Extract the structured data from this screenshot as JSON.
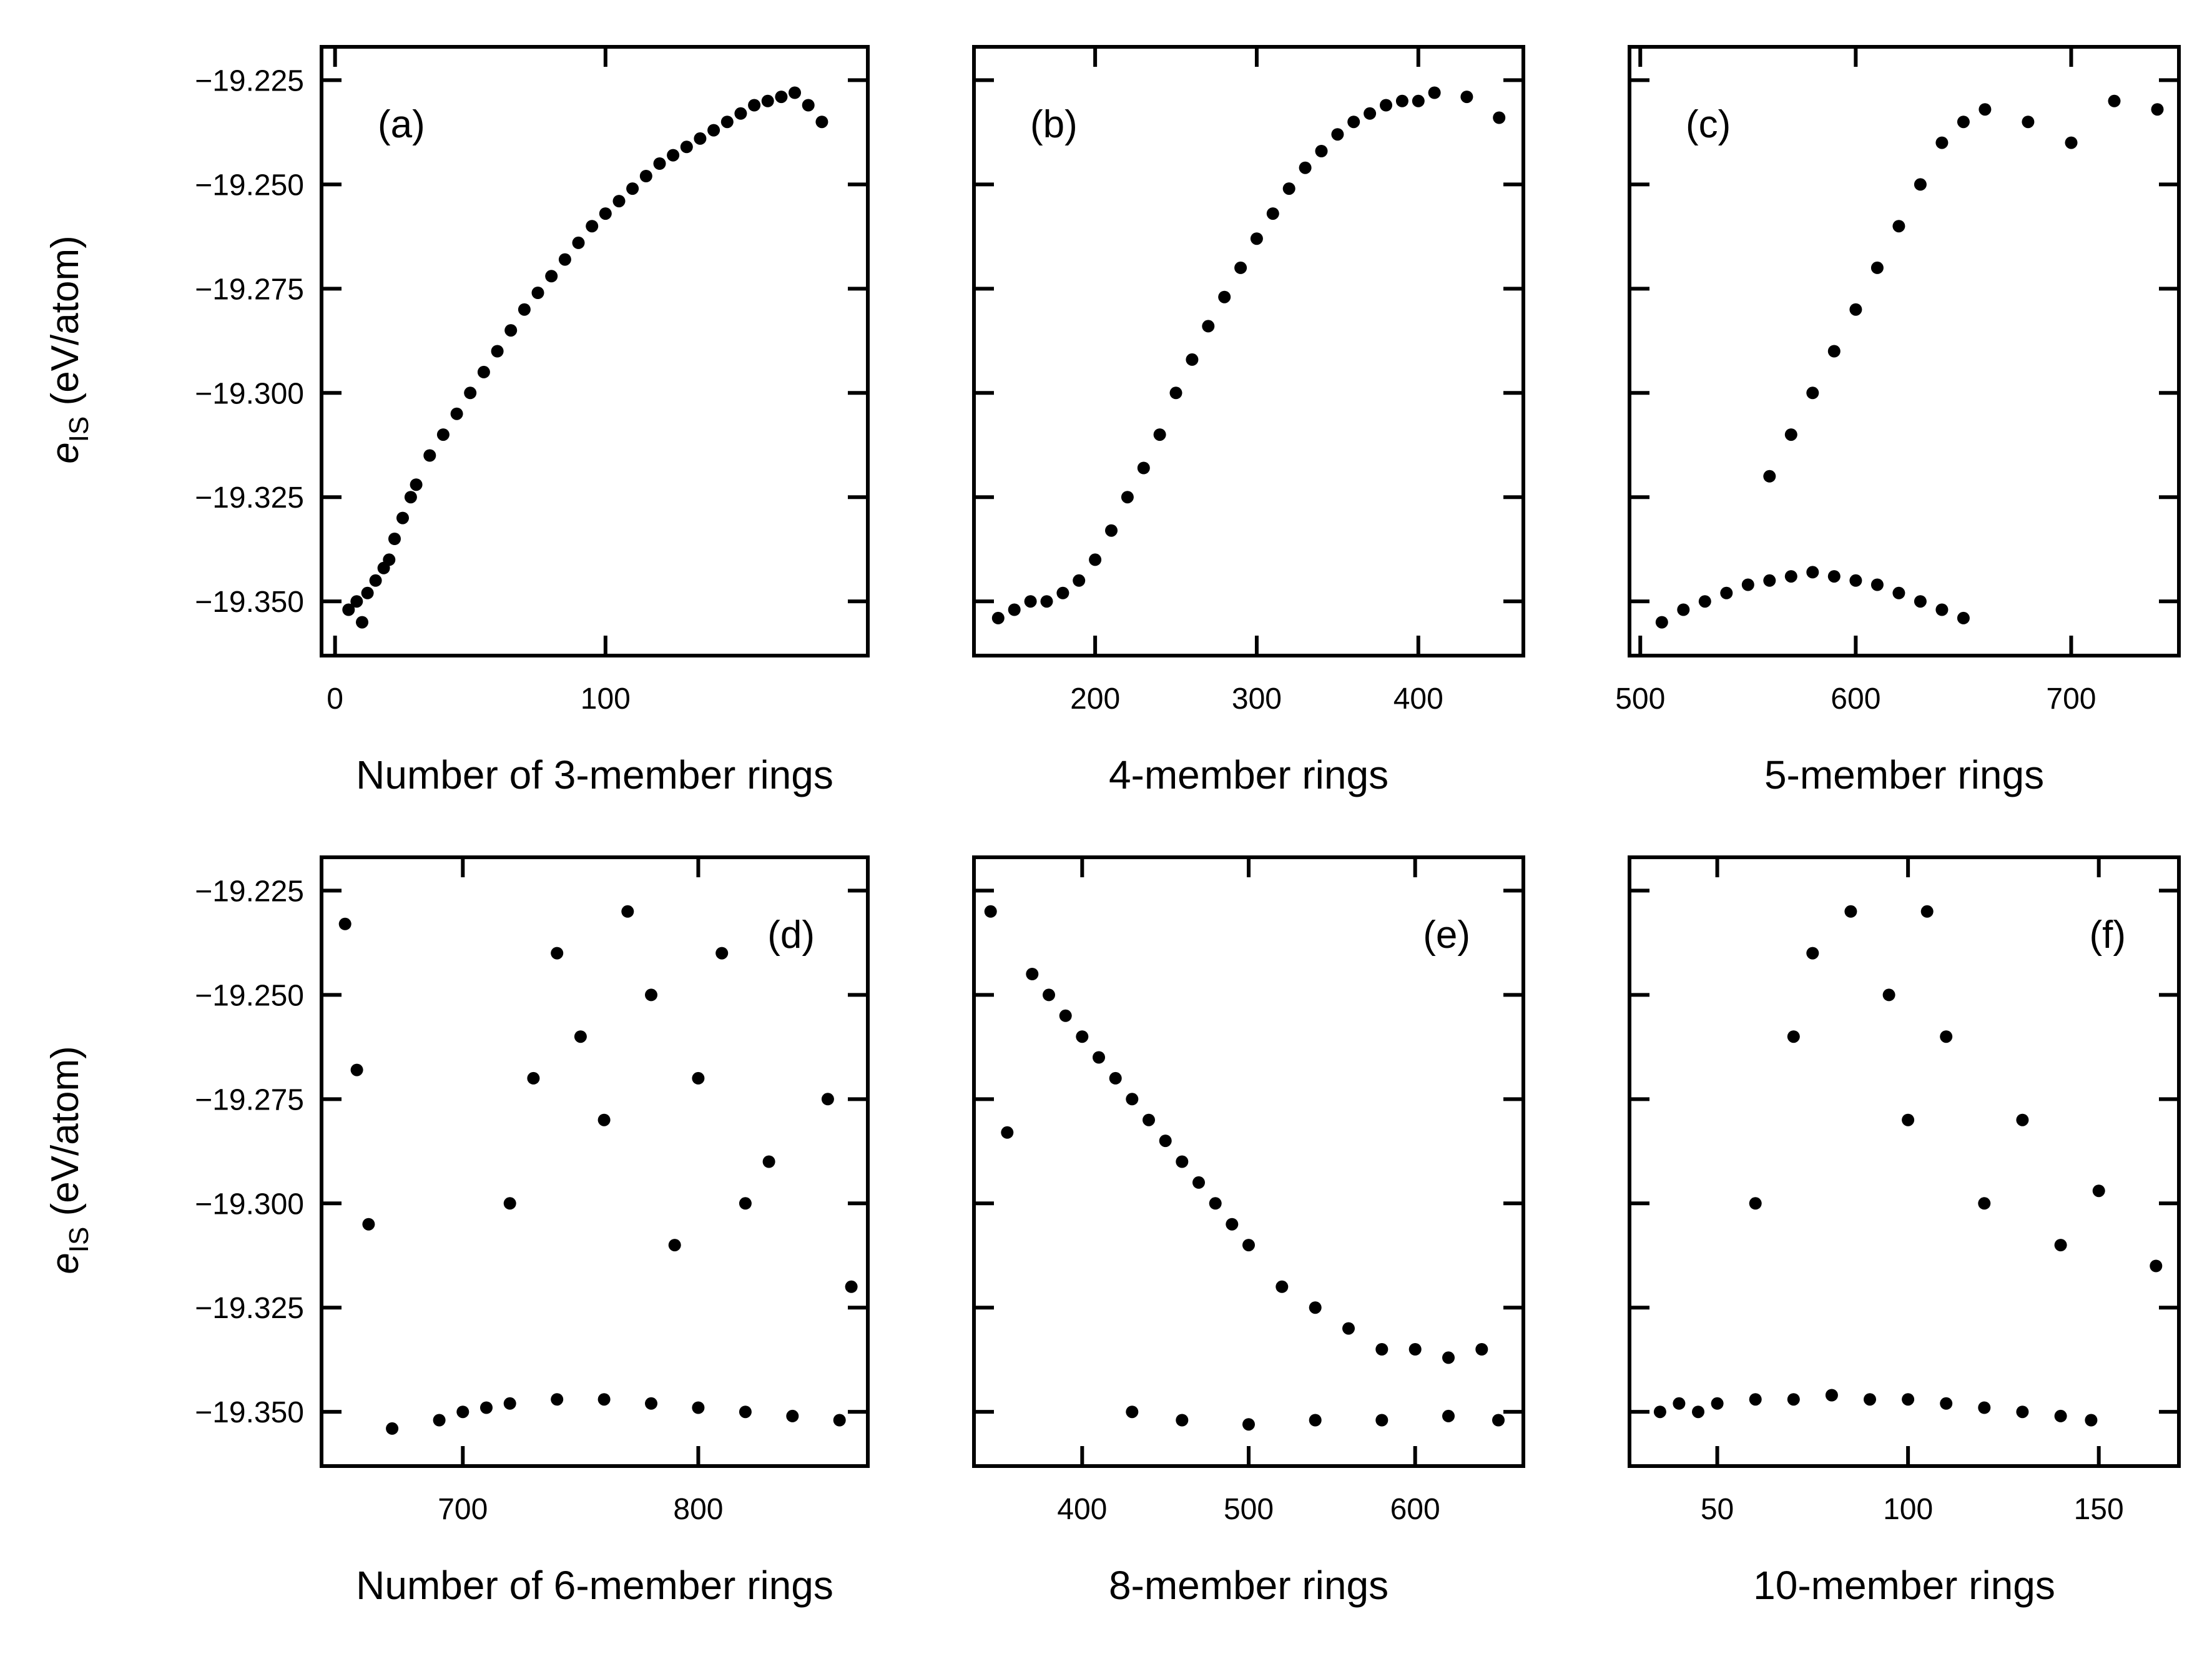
{
  "figure": {
    "shared_ylabel_main": "e",
    "shared_ylabel_sub": "IS",
    "shared_ylabel_unit": " (eV/atom)"
  },
  "chart_data": [
    {
      "type": "scatter",
      "panel_label": "(a)",
      "xlabel": "Number of 3-member rings",
      "ylabel": "e_IS (eV/atom)",
      "xlim": [
        -5,
        197
      ],
      "ylim": [
        -19.363,
        -19.217
      ],
      "xticks": [
        0,
        100
      ],
      "yticks": [
        -19.225,
        -19.25,
        -19.275,
        -19.3,
        -19.325,
        -19.35
      ],
      "ytick_labels": [
        "−19.225",
        "−19.250",
        "−19.275",
        "−19.300",
        "−19.325",
        "−19.350"
      ],
      "color": "#000000",
      "points": [
        [
          5,
          -19.352
        ],
        [
          8,
          -19.35
        ],
        [
          10,
          -19.355
        ],
        [
          12,
          -19.348
        ],
        [
          15,
          -19.345
        ],
        [
          18,
          -19.342
        ],
        [
          20,
          -19.34
        ],
        [
          22,
          -19.335
        ],
        [
          25,
          -19.33
        ],
        [
          28,
          -19.325
        ],
        [
          30,
          -19.322
        ],
        [
          35,
          -19.315
        ],
        [
          40,
          -19.31
        ],
        [
          45,
          -19.305
        ],
        [
          50,
          -19.3
        ],
        [
          55,
          -19.295
        ],
        [
          60,
          -19.29
        ],
        [
          65,
          -19.285
        ],
        [
          70,
          -19.28
        ],
        [
          75,
          -19.276
        ],
        [
          80,
          -19.272
        ],
        [
          85,
          -19.268
        ],
        [
          90,
          -19.264
        ],
        [
          95,
          -19.26
        ],
        [
          100,
          -19.257
        ],
        [
          105,
          -19.254
        ],
        [
          110,
          -19.251
        ],
        [
          115,
          -19.248
        ],
        [
          120,
          -19.245
        ],
        [
          125,
          -19.243
        ],
        [
          130,
          -19.241
        ],
        [
          135,
          -19.239
        ],
        [
          140,
          -19.237
        ],
        [
          145,
          -19.235
        ],
        [
          150,
          -19.233
        ],
        [
          155,
          -19.231
        ],
        [
          160,
          -19.23
        ],
        [
          165,
          -19.229
        ],
        [
          170,
          -19.228
        ],
        [
          175,
          -19.231
        ],
        [
          180,
          -19.235
        ]
      ]
    },
    {
      "type": "scatter",
      "panel_label": "(b)",
      "xlabel": "4-member rings",
      "ylabel": "",
      "xlim": [
        125,
        465
      ],
      "ylim": [
        -19.363,
        -19.217
      ],
      "xticks": [
        200,
        300,
        400
      ],
      "color": "#000000",
      "points": [
        [
          140,
          -19.354
        ],
        [
          150,
          -19.352
        ],
        [
          160,
          -19.35
        ],
        [
          170,
          -19.35
        ],
        [
          180,
          -19.348
        ],
        [
          190,
          -19.345
        ],
        [
          200,
          -19.34
        ],
        [
          210,
          -19.333
        ],
        [
          220,
          -19.325
        ],
        [
          230,
          -19.318
        ],
        [
          240,
          -19.31
        ],
        [
          250,
          -19.3
        ],
        [
          260,
          -19.292
        ],
        [
          270,
          -19.284
        ],
        [
          280,
          -19.277
        ],
        [
          290,
          -19.27
        ],
        [
          300,
          -19.263
        ],
        [
          310,
          -19.257
        ],
        [
          320,
          -19.251
        ],
        [
          330,
          -19.246
        ],
        [
          340,
          -19.242
        ],
        [
          350,
          -19.238
        ],
        [
          360,
          -19.235
        ],
        [
          370,
          -19.233
        ],
        [
          380,
          -19.231
        ],
        [
          390,
          -19.23
        ],
        [
          400,
          -19.23
        ],
        [
          410,
          -19.228
        ],
        [
          430,
          -19.229
        ],
        [
          450,
          -19.234
        ]
      ]
    },
    {
      "type": "scatter",
      "panel_label": "(c)",
      "xlabel": "5-member rings",
      "ylabel": "",
      "xlim": [
        495,
        750
      ],
      "ylim": [
        -19.363,
        -19.217
      ],
      "xticks": [
        500,
        600,
        700
      ],
      "color": "#000000",
      "points": [
        [
          510,
          -19.355
        ],
        [
          520,
          -19.352
        ],
        [
          530,
          -19.35
        ],
        [
          540,
          -19.348
        ],
        [
          550,
          -19.346
        ],
        [
          560,
          -19.345
        ],
        [
          570,
          -19.344
        ],
        [
          580,
          -19.343
        ],
        [
          590,
          -19.344
        ],
        [
          600,
          -19.345
        ],
        [
          610,
          -19.346
        ],
        [
          620,
          -19.348
        ],
        [
          630,
          -19.35
        ],
        [
          640,
          -19.352
        ],
        [
          650,
          -19.354
        ],
        [
          560,
          -19.32
        ],
        [
          570,
          -19.31
        ],
        [
          580,
          -19.3
        ],
        [
          590,
          -19.29
        ],
        [
          600,
          -19.28
        ],
        [
          610,
          -19.27
        ],
        [
          620,
          -19.26
        ],
        [
          630,
          -19.25
        ],
        [
          640,
          -19.24
        ],
        [
          650,
          -19.235
        ],
        [
          660,
          -19.232
        ],
        [
          680,
          -19.235
        ],
        [
          700,
          -19.24
        ],
        [
          720,
          -19.23
        ],
        [
          740,
          -19.232
        ]
      ]
    },
    {
      "type": "scatter",
      "panel_label": "(d)",
      "xlabel": "Number of 6-member rings",
      "ylabel": "",
      "xlim": [
        640,
        872
      ],
      "ylim": [
        -19.363,
        -19.217
      ],
      "xticks": [
        700,
        800
      ],
      "color": "#000000",
      "points": [
        [
          650,
          -19.233
        ],
        [
          655,
          -19.268
        ],
        [
          660,
          -19.305
        ],
        [
          670,
          -19.354
        ],
        [
          690,
          -19.352
        ],
        [
          700,
          -19.35
        ],
        [
          710,
          -19.349
        ],
        [
          720,
          -19.348
        ],
        [
          740,
          -19.347
        ],
        [
          760,
          -19.347
        ],
        [
          780,
          -19.348
        ],
        [
          800,
          -19.349
        ],
        [
          820,
          -19.35
        ],
        [
          840,
          -19.351
        ],
        [
          860,
          -19.352
        ],
        [
          720,
          -19.3
        ],
        [
          730,
          -19.27
        ],
        [
          740,
          -19.24
        ],
        [
          750,
          -19.26
        ],
        [
          760,
          -19.28
        ],
        [
          770,
          -19.23
        ],
        [
          780,
          -19.25
        ],
        [
          790,
          -19.31
        ],
        [
          800,
          -19.27
        ],
        [
          810,
          -19.24
        ],
        [
          820,
          -19.3
        ],
        [
          830,
          -19.29
        ],
        [
          855,
          -19.275
        ],
        [
          865,
          -19.32
        ]
      ]
    },
    {
      "type": "scatter",
      "panel_label": "(e)",
      "xlabel": "8-member rings",
      "ylabel": "",
      "xlim": [
        335,
        665
      ],
      "ylim": [
        -19.363,
        -19.217
      ],
      "xticks": [
        400,
        500,
        600
      ],
      "color": "#000000",
      "points": [
        [
          345,
          -19.23
        ],
        [
          355,
          -19.283
        ],
        [
          370,
          -19.245
        ],
        [
          380,
          -19.25
        ],
        [
          390,
          -19.255
        ],
        [
          400,
          -19.26
        ],
        [
          410,
          -19.265
        ],
        [
          420,
          -19.27
        ],
        [
          430,
          -19.275
        ],
        [
          440,
          -19.28
        ],
        [
          450,
          -19.285
        ],
        [
          460,
          -19.29
        ],
        [
          470,
          -19.295
        ],
        [
          480,
          -19.3
        ],
        [
          490,
          -19.305
        ],
        [
          500,
          -19.31
        ],
        [
          520,
          -19.32
        ],
        [
          540,
          -19.325
        ],
        [
          560,
          -19.33
        ],
        [
          580,
          -19.335
        ],
        [
          600,
          -19.335
        ],
        [
          620,
          -19.337
        ],
        [
          640,
          -19.335
        ],
        [
          430,
          -19.35
        ],
        [
          460,
          -19.352
        ],
        [
          500,
          -19.353
        ],
        [
          540,
          -19.352
        ],
        [
          580,
          -19.352
        ],
        [
          620,
          -19.351
        ],
        [
          650,
          -19.352
        ]
      ]
    },
    {
      "type": "scatter",
      "panel_label": "(f)",
      "xlabel": "10-member rings",
      "ylabel": "",
      "xlim": [
        27,
        171
      ],
      "ylim": [
        -19.363,
        -19.217
      ],
      "xticks": [
        50,
        100,
        150
      ],
      "color": "#000000",
      "points": [
        [
          35,
          -19.35
        ],
        [
          40,
          -19.348
        ],
        [
          45,
          -19.35
        ],
        [
          50,
          -19.348
        ],
        [
          60,
          -19.347
        ],
        [
          70,
          -19.347
        ],
        [
          80,
          -19.346
        ],
        [
          90,
          -19.347
        ],
        [
          100,
          -19.347
        ],
        [
          110,
          -19.348
        ],
        [
          120,
          -19.349
        ],
        [
          130,
          -19.35
        ],
        [
          140,
          -19.351
        ],
        [
          148,
          -19.352
        ],
        [
          60,
          -19.3
        ],
        [
          70,
          -19.26
        ],
        [
          75,
          -19.24
        ],
        [
          85,
          -19.23
        ],
        [
          95,
          -19.25
        ],
        [
          100,
          -19.28
        ],
        [
          105,
          -19.23
        ],
        [
          110,
          -19.26
        ],
        [
          120,
          -19.3
        ],
        [
          130,
          -19.28
        ],
        [
          140,
          -19.31
        ],
        [
          150,
          -19.297
        ],
        [
          165,
          -19.315
        ]
      ]
    }
  ]
}
